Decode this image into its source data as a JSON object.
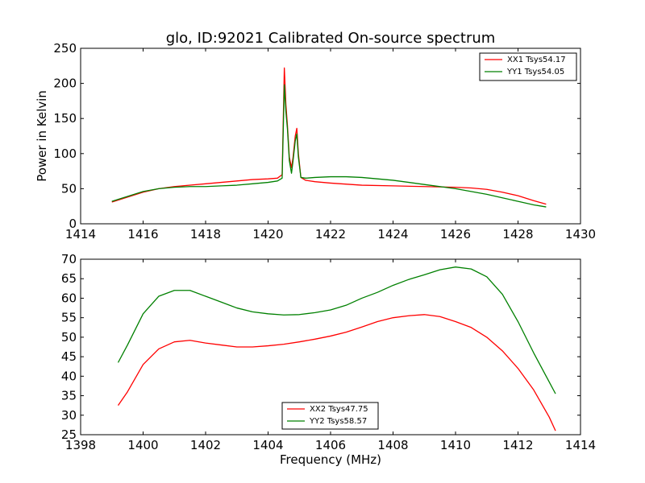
{
  "chart_data": [
    {
      "type": "line",
      "title": "glo, ID:92021 Calibrated On-source spectrum",
      "xlabel": "",
      "ylabel": "Power in Kelvin",
      "xlim": [
        1414,
        1430
      ],
      "ylim": [
        0,
        250
      ],
      "xticks": [
        1414,
        1416,
        1418,
        1420,
        1422,
        1424,
        1426,
        1428,
        1430
      ],
      "yticks": [
        0,
        50,
        100,
        150,
        200,
        250
      ],
      "grid": false,
      "legend": "top-right",
      "series": [
        {
          "name": "XX1 Tsys54.17",
          "color": "#ff0000",
          "x": [
            1415.0,
            1415.5,
            1416.0,
            1416.5,
            1417.0,
            1417.5,
            1418.0,
            1418.5,
            1419.0,
            1419.5,
            1420.0,
            1420.3,
            1420.45,
            1420.52,
            1420.57,
            1420.62,
            1420.68,
            1420.75,
            1420.8,
            1420.87,
            1420.92,
            1420.97,
            1421.05,
            1421.2,
            1421.5,
            1422.0,
            1423.0,
            1424.0,
            1425.0,
            1426.0,
            1426.5,
            1427.0,
            1427.5,
            1428.0,
            1428.5,
            1428.9
          ],
          "y": [
            31,
            38,
            45,
            50,
            53,
            55,
            57,
            59,
            61,
            63,
            64,
            65,
            70,
            222,
            170,
            140,
            95,
            80,
            95,
            125,
            136,
            100,
            66,
            62,
            60,
            58,
            55,
            54,
            53,
            52,
            51,
            49,
            45,
            40,
            33,
            28
          ]
        },
        {
          "name": "YY1 Tsys54.05",
          "color": "#008000",
          "x": [
            1415.0,
            1415.5,
            1416.0,
            1416.5,
            1417.0,
            1417.5,
            1418.0,
            1418.5,
            1419.0,
            1419.5,
            1420.0,
            1420.3,
            1420.45,
            1420.52,
            1420.57,
            1420.62,
            1420.68,
            1420.75,
            1420.8,
            1420.87,
            1420.92,
            1420.97,
            1421.05,
            1421.2,
            1421.5,
            1422.0,
            1422.5,
            1423.0,
            1424.0,
            1425.0,
            1426.0,
            1426.5,
            1427.0,
            1427.5,
            1428.0,
            1428.5,
            1428.9
          ],
          "y": [
            32,
            39,
            46,
            50,
            52,
            53,
            53,
            54,
            55,
            57,
            59,
            61,
            65,
            198,
            160,
            135,
            90,
            72,
            90,
            118,
            128,
            95,
            66,
            65,
            66,
            67,
            67,
            66,
            62,
            56,
            50,
            46,
            42,
            37,
            32,
            27,
            24
          ]
        }
      ]
    },
    {
      "type": "line",
      "title": "",
      "xlabel": "Frequency (MHz)",
      "ylabel": "",
      "xlim": [
        1398,
        1414
      ],
      "ylim": [
        25,
        70
      ],
      "xticks": [
        1398,
        1400,
        1402,
        1404,
        1406,
        1408,
        1410,
        1412,
        1414
      ],
      "yticks": [
        25,
        30,
        35,
        40,
        45,
        50,
        55,
        60,
        65,
        70
      ],
      "grid": false,
      "legend": "bottom-center",
      "series": [
        {
          "name": "XX2 Tsys47.75",
          "color": "#ff0000",
          "x": [
            1399.2,
            1399.5,
            1400.0,
            1400.5,
            1401.0,
            1401.5,
            1402.0,
            1402.5,
            1403.0,
            1403.5,
            1404.0,
            1404.5,
            1405.0,
            1405.5,
            1406.0,
            1406.5,
            1407.0,
            1407.5,
            1408.0,
            1408.5,
            1409.0,
            1409.5,
            1410.0,
            1410.5,
            1411.0,
            1411.5,
            1412.0,
            1412.5,
            1413.0,
            1413.2
          ],
          "y": [
            32.5,
            36,
            43,
            47,
            48.8,
            49.2,
            48.5,
            48,
            47.5,
            47.5,
            47.8,
            48.2,
            48.8,
            49.5,
            50.3,
            51.3,
            52.6,
            54,
            55,
            55.5,
            55.8,
            55.3,
            54,
            52.5,
            50,
            46.5,
            42,
            36.5,
            29.5,
            26
          ]
        },
        {
          "name": "YY2 Tsys58.57",
          "color": "#008000",
          "x": [
            1399.2,
            1399.5,
            1400.0,
            1400.5,
            1401.0,
            1401.5,
            1402.0,
            1402.5,
            1403.0,
            1403.5,
            1404.0,
            1404.5,
            1405.0,
            1405.5,
            1406.0,
            1406.5,
            1407.0,
            1407.5,
            1408.0,
            1408.5,
            1409.0,
            1409.5,
            1410.0,
            1410.5,
            1411.0,
            1411.5,
            1412.0,
            1412.5,
            1413.0,
            1413.2
          ],
          "y": [
            43.5,
            48,
            56,
            60.5,
            62,
            62,
            60.5,
            59,
            57.5,
            56.5,
            56,
            55.7,
            55.8,
            56.3,
            57,
            58.2,
            60,
            61.5,
            63.3,
            64.8,
            66,
            67.3,
            68,
            67.5,
            65.5,
            61,
            54,
            46,
            38.5,
            35.5
          ]
        }
      ]
    }
  ]
}
